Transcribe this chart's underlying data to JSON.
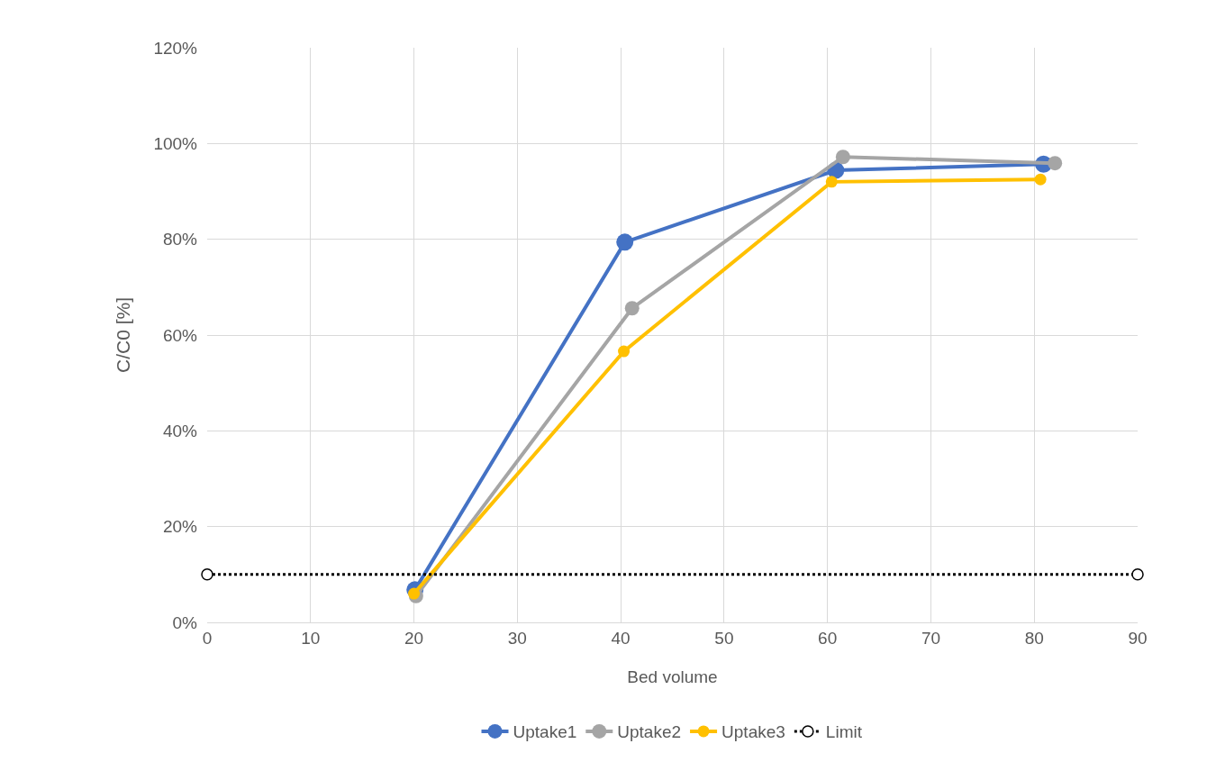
{
  "chart_data": {
    "type": "line",
    "xlabel": "Bed volume",
    "ylabel": "C/C0 [%]",
    "xlim": [
      0,
      90
    ],
    "xticks": [
      0,
      10,
      20,
      30,
      40,
      50,
      60,
      70,
      80,
      90
    ],
    "ylim": [
      0,
      120
    ],
    "yticks": [
      {
        "value": 0,
        "label": "0%"
      },
      {
        "value": 20,
        "label": "20%"
      },
      {
        "value": 40,
        "label": "40%"
      },
      {
        "value": 60,
        "label": "60%"
      },
      {
        "value": 80,
        "label": "80%"
      },
      {
        "value": 100,
        "label": "100%"
      },
      {
        "value": 120,
        "label": "120%"
      }
    ],
    "grid": true,
    "legend": "bottom",
    "marker": "circle",
    "line_style": "solid",
    "series": [
      {
        "name": "Uptake1",
        "color": "#4472c4",
        "x": [
          20.1,
          40.4,
          60.8,
          80.9
        ],
        "values": [
          6.8,
          79.4,
          94.4,
          95.7
        ]
      },
      {
        "name": "Uptake2",
        "color": "#a5a5a5",
        "x": [
          20.2,
          41.1,
          61.5,
          82.0
        ],
        "values": [
          5.5,
          65.6,
          97.2,
          95.9
        ]
      },
      {
        "name": "Uptake3",
        "color": "#ffc000",
        "x": [
          20.0,
          40.3,
          60.4,
          80.6
        ],
        "values": [
          6.0,
          56.6,
          92.0,
          92.5
        ]
      },
      {
        "name": "Limit",
        "color": "#000000",
        "x": [
          0,
          90
        ],
        "values": [
          10,
          10
        ],
        "line_style": "dotted",
        "marker": "open circle"
      }
    ]
  }
}
